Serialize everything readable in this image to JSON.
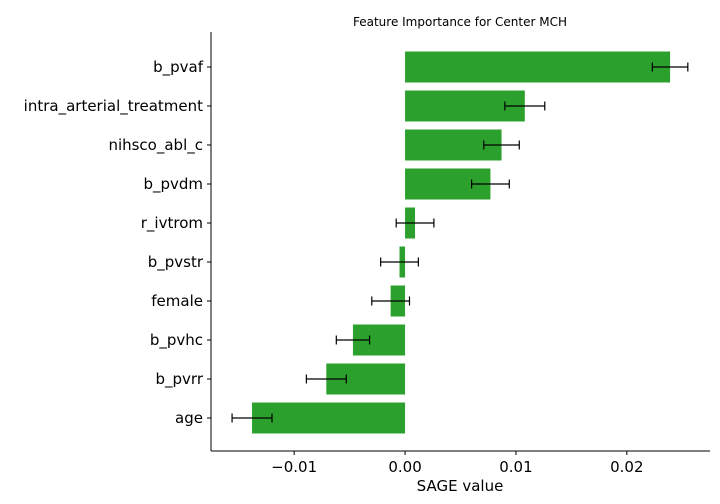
{
  "chart_data": {
    "type": "bar",
    "orientation": "horizontal",
    "title": "Feature Importance for Center MCH",
    "xlabel": "SAGE value",
    "ylabel": "",
    "xlim": [
      -0.0175,
      0.0275
    ],
    "xticks": [
      -0.01,
      0.0,
      0.01,
      0.02
    ],
    "xtick_labels": [
      "−0.01",
      "0.00",
      "0.01",
      "0.02"
    ],
    "grid": false,
    "bar_color": "#2ca02c",
    "categories": [
      "b_pvaf",
      "intra_arterial_treatment",
      "nihsco_abl_c",
      "b_pvdm",
      "r_ivtrom",
      "b_pvstr",
      "female",
      "b_pvhc",
      "b_pvrr",
      "age"
    ],
    "values": [
      0.0239,
      0.0108,
      0.0087,
      0.0077,
      0.0009,
      -0.0005,
      -0.0013,
      -0.0047,
      -0.0071,
      -0.0138
    ],
    "errors": [
      0.0016,
      0.0018,
      0.0016,
      0.0017,
      0.0017,
      0.0017,
      0.0017,
      0.0015,
      0.0018,
      0.0018
    ]
  }
}
